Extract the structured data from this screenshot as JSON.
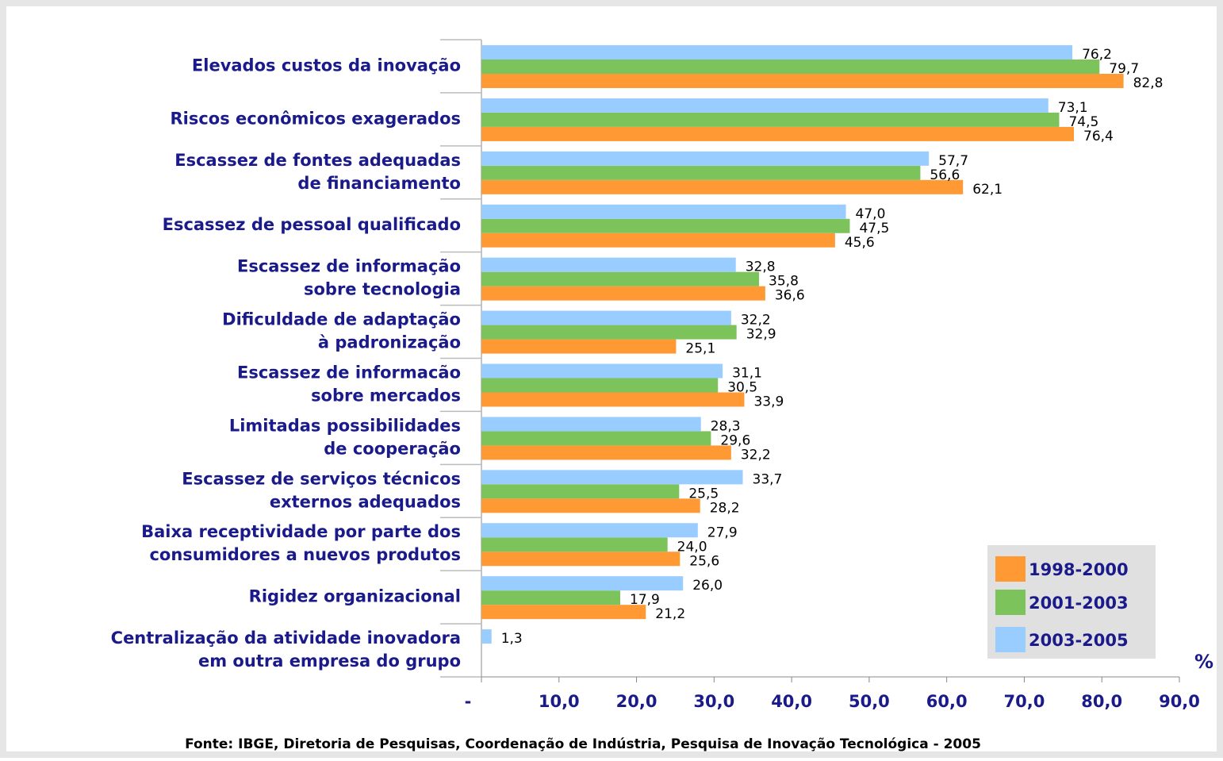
{
  "chart_data": {
    "type": "hbar",
    "categories": [
      [
        "Elevados custos da inovação"
      ],
      [
        "Riscos econômicos exagerados"
      ],
      [
        "Escassez de fontes adequadas",
        "de financiamento"
      ],
      [
        "Escassez de pessoal qualificado"
      ],
      [
        "Escassez de informação",
        "sobre tecnologia"
      ],
      [
        "Dificuldade de adaptação",
        "à padronização"
      ],
      [
        "Escassez de informacão",
        "sobre mercados"
      ],
      [
        "Limitadas possibilidades",
        "de cooperação"
      ],
      [
        "Escassez de serviços técnicos",
        "externos adequados"
      ],
      [
        "Baixa receptividade por parte dos",
        "consumidores a nuevos produtos"
      ],
      [
        "Rigidez organizacional"
      ],
      [
        "Centralização da atividade inovadora",
        "em outra empresa do grupo"
      ]
    ],
    "series": [
      {
        "name": "1998-2000",
        "color": "#ff9933",
        "values": [
          82.8,
          76.4,
          62.1,
          45.6,
          36.6,
          25.1,
          33.9,
          32.2,
          28.2,
          25.6,
          21.2,
          null
        ],
        "value_labels": [
          "82,8",
          "76,4",
          "62,1",
          "45,6",
          "36,6",
          "25,1",
          "33,9",
          "32,2",
          "28,2",
          "25,6",
          "21,2",
          null
        ]
      },
      {
        "name": "2001-2003",
        "color": "#7dc35b",
        "values": [
          79.7,
          74.5,
          56.6,
          47.5,
          35.8,
          32.9,
          30.5,
          29.6,
          25.5,
          24.0,
          17.9,
          null
        ],
        "value_labels": [
          "79,7",
          "74,5",
          "56,6",
          "47,5",
          "35,8",
          "32,9",
          "30,5",
          "29,6",
          "25,5",
          "24,0",
          "17,9",
          null
        ]
      },
      {
        "name": "2003-2005",
        "color": "#99ccff",
        "values": [
          76.2,
          73.1,
          57.7,
          47.0,
          32.8,
          32.2,
          31.1,
          28.3,
          33.7,
          27.9,
          26.0,
          1.3
        ],
        "value_labels": [
          "76,2",
          "73,1",
          "57,7",
          "47,0",
          "32,8",
          "32,2",
          "31,1",
          "28,3",
          "33,7",
          "27,9",
          "26,0",
          "1,3"
        ]
      }
    ],
    "xlim": [
      0,
      90
    ],
    "xticks": [
      {
        "value": 0,
        "label": "-"
      },
      {
        "value": 10,
        "label": "10,0"
      },
      {
        "value": 20,
        "label": "20,0"
      },
      {
        "value": 30,
        "label": "30,0"
      },
      {
        "value": 40,
        "label": "40,0"
      },
      {
        "value": 50,
        "label": "50,0"
      },
      {
        "value": 60,
        "label": "60,0"
      },
      {
        "value": 70,
        "label": "70,0"
      },
      {
        "value": 80,
        "label": "80,0"
      },
      {
        "value": 90,
        "label": "90,0"
      }
    ],
    "x_axis_label": "%",
    "legend": "lower right",
    "source": "Fonte: IBGE, Diretoria de Pesquisas, Coordenação de Indústria, Pesquisa de Inovação Tecnológica - 2005"
  }
}
